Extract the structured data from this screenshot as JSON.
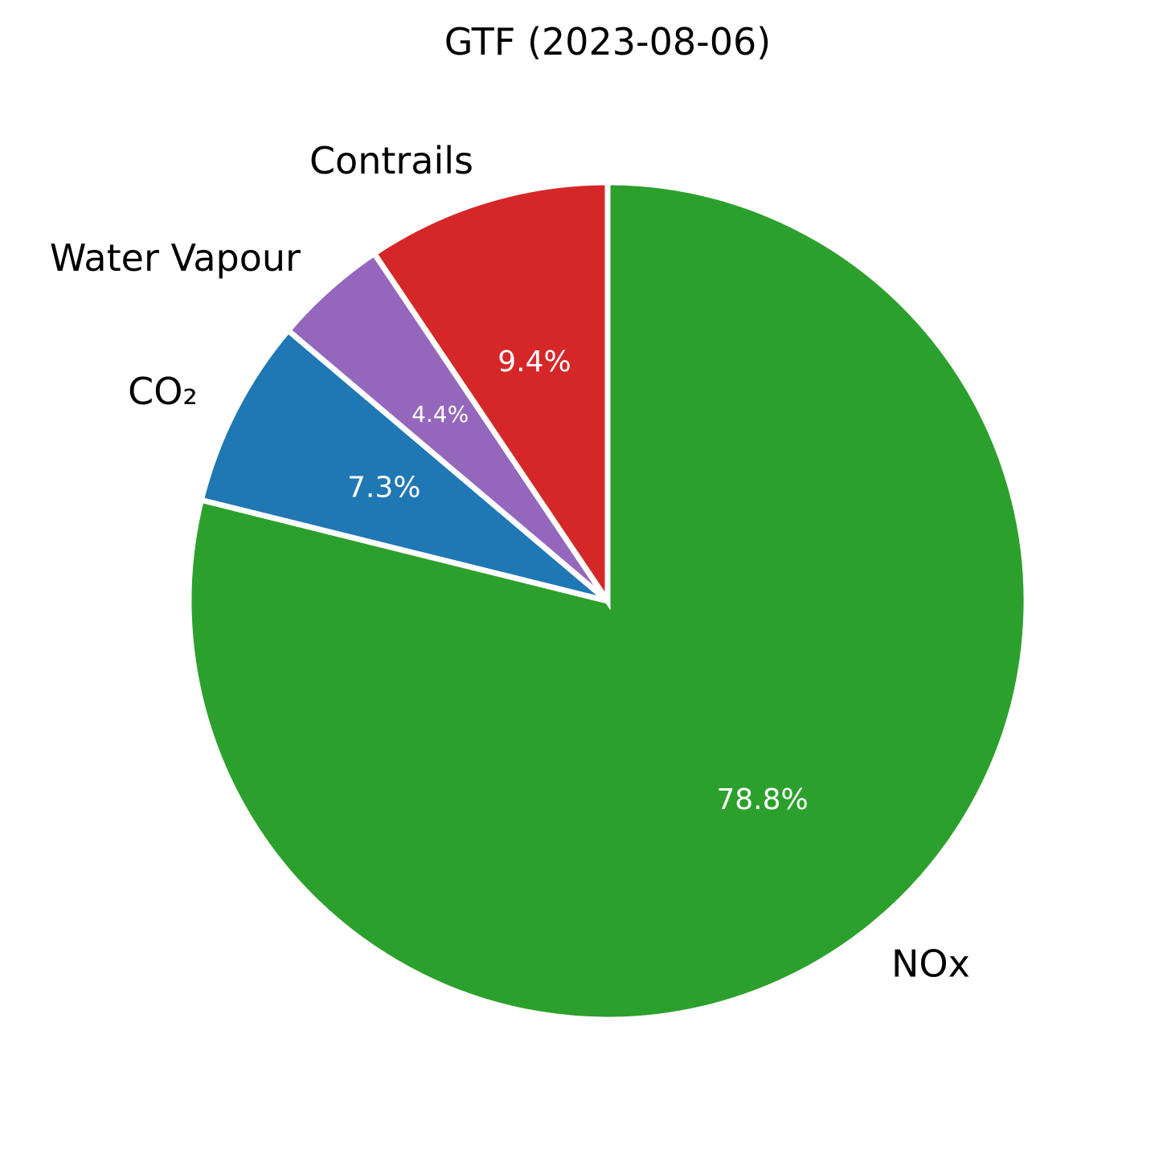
{
  "chart_data": {
    "type": "pie",
    "title": "GTF (2023-08-06)",
    "start_angle_deg": 90,
    "direction": "clockwise",
    "slices": [
      {
        "label": "NOx",
        "value": 78.8,
        "pct_label": "78.8%",
        "color": "#2ca02c"
      },
      {
        "label": "CO₂",
        "value": 7.3,
        "pct_label": "7.3%",
        "color": "#1f77b4"
      },
      {
        "label": "Water Vapour",
        "value": 4.4,
        "pct_label": "4.4%",
        "color": "#9467bd"
      },
      {
        "label": "Contrails",
        "value": 9.4,
        "pct_label": "9.4%",
        "color": "#d62728"
      }
    ],
    "wedge_edge_color": "#ffffff",
    "legend": "none"
  }
}
